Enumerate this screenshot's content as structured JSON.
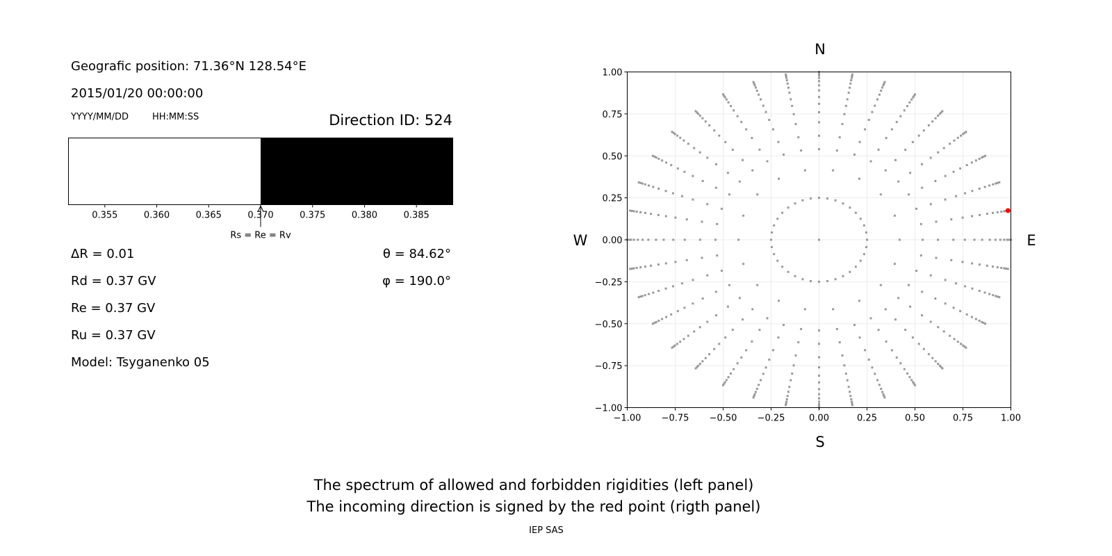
{
  "left_panel": {
    "position": "Geografic position: 71.36°N 128.54°E",
    "datetime": "2015/01/20 00:00:00",
    "date_format": "YYYY/MM/DD",
    "time_format": "HH:MM:SS",
    "direction_id": "Direction ID: 524",
    "marker_label": "Rs = Re = Rv",
    "delta_r": "ΔR = 0.01",
    "rd": "Rd = 0.37 GV",
    "re": "Re = 0.37 GV",
    "ru": "Ru = 0.37 GV",
    "model": "Model: Tsyganenko 05",
    "theta": "θ = 84.62°",
    "phi": "φ = 190.0°"
  },
  "captions": {
    "line1": "The spectrum of allowed and forbidden rigidities (left panel)",
    "line2": "The incoming direction is signed by the red point (rigth panel)",
    "credit": "IEP SAS"
  },
  "chart_data": [
    {
      "type": "bar",
      "xlim": [
        0.3515,
        0.3885
      ],
      "xticks": [
        "0.355",
        "0.360",
        "0.365",
        "0.370",
        "0.375",
        "0.380",
        "0.385"
      ],
      "xtick_values": [
        0.355,
        0.36,
        0.365,
        0.37,
        0.375,
        0.38,
        0.385
      ],
      "segments": [
        {
          "from": 0.3515,
          "to": 0.37,
          "state": "allowed",
          "color": "#ffffff"
        },
        {
          "from": 0.37,
          "to": 0.3885,
          "state": "forbidden",
          "color": "#000000"
        }
      ],
      "marker_value": 0.37
    },
    {
      "type": "scatter",
      "xlim": [
        -1,
        1
      ],
      "ylim": [
        -1,
        1
      ],
      "xticks": [
        "−1.00",
        "−0.75",
        "−0.50",
        "−0.25",
        "0.00",
        "0.25",
        "0.50",
        "0.75",
        "1.00"
      ],
      "yticks": [
        "−1.00",
        "−0.75",
        "−0.50",
        "−0.25",
        "0.00",
        "0.25",
        "0.50",
        "0.75",
        "1.00"
      ],
      "tick_values": [
        -1,
        -0.75,
        -0.5,
        -0.25,
        0,
        0.25,
        0.5,
        0.75,
        1
      ],
      "grid": true,
      "compass": {
        "north": "N",
        "south": "S",
        "west": "W",
        "east": "E"
      },
      "point_color": "#999999",
      "highlight_color": "#ff0000",
      "direction_rings": [
        {
          "r": 0.0,
          "step_deg": 360
        },
        {
          "r": 0.25,
          "step_deg": 10
        },
        {
          "r": 0.42,
          "step_deg": 20
        },
        {
          "r": 0.54,
          "step_deg": 10
        },
        {
          "r": 0.62,
          "step_deg": 10
        },
        {
          "r": 0.7,
          "step_deg": 10
        },
        {
          "r": 0.76,
          "step_deg": 10
        },
        {
          "r": 0.81,
          "step_deg": 10
        },
        {
          "r": 0.85,
          "step_deg": 10
        },
        {
          "r": 0.89,
          "step_deg": 10
        },
        {
          "r": 0.92,
          "step_deg": 10
        },
        {
          "r": 0.945,
          "step_deg": 10
        },
        {
          "r": 0.965,
          "step_deg": 10
        },
        {
          "r": 0.98,
          "step_deg": 10
        },
        {
          "r": 0.99,
          "step_deg": 10
        },
        {
          "r": 1.0,
          "step_deg": 10
        }
      ],
      "highlight_point": {
        "x": 0.985,
        "y": 0.174
      }
    }
  ]
}
